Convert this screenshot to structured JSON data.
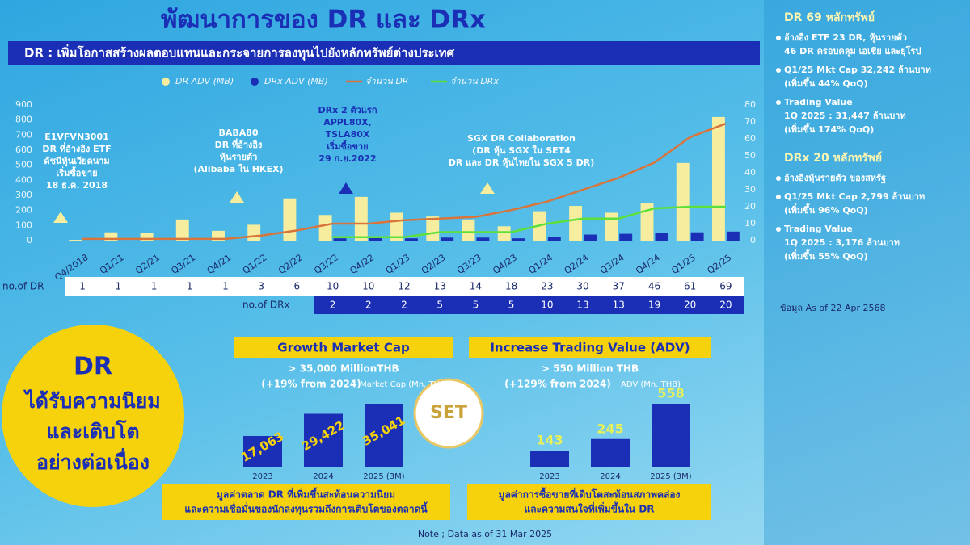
{
  "header": {
    "title": "พัฒนาการของ DR และ DRx",
    "banner": "DR : เพิ่มโอกาสสร้างผลตอบแทนและกระจายการลงทุนไปยังหลักทรัพย์ต่างประเทศ"
  },
  "chart_data": [
    {
      "type": "combo",
      "categories": [
        "Q4/2018",
        "Q1/21",
        "Q2/21",
        "Q3/21",
        "Q4/21",
        "Q1/22",
        "Q2/22",
        "Q3/22",
        "Q4/22",
        "Q1/23",
        "Q2/23",
        "Q3/23",
        "Q4/23",
        "Q1/24",
        "Q2/24",
        "Q3/24",
        "Q4/24",
        "Q1/25",
        "Q2/25"
      ],
      "series": [
        {
          "name": "DR ADV (MB)",
          "kind": "bar",
          "color": "#f6ee9e",
          "values": [
            5,
            55,
            50,
            140,
            65,
            105,
            280,
            170,
            290,
            185,
            160,
            140,
            95,
            195,
            230,
            185,
            250,
            515,
            820
          ]
        },
        {
          "name": "DRx ADV (MB)",
          "kind": "bar",
          "color": "#1a2fb5",
          "values": [
            null,
            null,
            null,
            null,
            null,
            null,
            null,
            15,
            20,
            15,
            20,
            20,
            15,
            25,
            40,
            45,
            50,
            55,
            60
          ]
        },
        {
          "name": "จำนวน DR",
          "kind": "line",
          "axis": "y2",
          "color": "#d9743a",
          "values": [
            1,
            1,
            1,
            1,
            1,
            3,
            6,
            10,
            10,
            12,
            13,
            14,
            18,
            23,
            30,
            37,
            46,
            61,
            69
          ]
        },
        {
          "name": "จำนวน DRx",
          "kind": "line",
          "axis": "y2",
          "color": "#5ee03a",
          "values": [
            null,
            null,
            null,
            null,
            null,
            null,
            null,
            2,
            2,
            2,
            5,
            5,
            5,
            10,
            13,
            13,
            19,
            20,
            20
          ]
        }
      ],
      "ylim": [
        0,
        900
      ],
      "yticks": [
        0,
        100,
        200,
        300,
        400,
        500,
        600,
        700,
        800,
        900
      ],
      "y2lim": [
        0,
        80
      ],
      "y2ticks": [
        0,
        10,
        20,
        30,
        40,
        50,
        60,
        70,
        80
      ],
      "annotations": [
        {
          "color": "#f6ee9e",
          "lines": [
            "E1VFVN3001",
            "DR ที่อ้างอิง ETF",
            "ดัชนีหุ้นเวียดนาม",
            "เริ่มซื้อขาย",
            "18 ธ.ค. 2018"
          ]
        },
        {
          "color": "#f6ee9e",
          "lines": [
            "BABA80",
            "DR ที่อ้างอิง",
            "หุ้นรายตัว",
            "(Alibaba ใน HKEX)"
          ]
        },
        {
          "color": "#1a2fb5",
          "lines": [
            "DRx 2 ตัวแรก",
            "APPL80X,",
            "TSLA80X",
            "เริ่มซื้อขาย",
            "29 ก.ย.2022"
          ]
        },
        {
          "color": "#f6ee9e",
          "lines": [
            "SGX DR Collaboration",
            "(DR หุ้น SGX ใน SET4",
            "DR และ DR หุ้นไทยใน SGX 5 DR)"
          ]
        }
      ]
    },
    {
      "type": "bar",
      "title": "Growth Market Cap",
      "subtitle": "> 35,000 MillionTHB",
      "note": "(+19% from 2024)",
      "unit": "Market Cap (Mn. THB)",
      "categories": [
        "2023",
        "2024",
        "2025 (3M)"
      ],
      "values": [
        17063,
        29422,
        35041
      ],
      "value_labels": [
        "17,063",
        "29,422",
        "35,041"
      ],
      "color": "#1a2fb5",
      "caption": [
        "มูลค่าตลาด DR ที่เพิ่มขึ้นสะท้อนความนิยม",
        "และความเชื่อมั่นของนักลงทุนรวมถึงการเติบโตของตลาดนี้"
      ]
    },
    {
      "type": "bar",
      "title": "Increase Trading Value (ADV)",
      "subtitle": "> 550 Million THB",
      "note": "(+129% from 2024)",
      "unit": "ADV (Mn. THB)",
      "categories": [
        "2023",
        "2024",
        "2025 (3M)"
      ],
      "values": [
        143,
        245,
        558
      ],
      "color": "#1a2fb5",
      "caption": [
        "มูลค่าการซื้อขายที่เติบโตสะท้อนสภาพคล่อง",
        "และความสนใจที่เพิ่มขึ้นใน DR"
      ]
    }
  ],
  "table": {
    "dr_label": "no.of DR",
    "drx_label": "no.of DRx"
  },
  "highlight": {
    "lines": [
      "DR",
      "ได้รับความนิยม",
      "และเติบโต",
      "อย่างต่อเนื่อง"
    ]
  },
  "logo": {
    "text": "SET"
  },
  "note": "Note ; Data as of 31 Mar 2025",
  "sidebar": {
    "dr": {
      "title": "DR 69 หลักทรัพย์",
      "items": [
        [
          "อ้างอิง ETF 23 DR, หุ้นรายตัว",
          "46 DR ครอบคลุม เอเชีย และยุโรป"
        ],
        [
          "Q1/25 Mkt Cap 32,242 ล้านบาท",
          "(เพิ่มขึ้น 44% QoQ)"
        ],
        [
          "Trading Value",
          "1Q 2025 : 31,447 ล้านบาท",
          "(เพิ่มขึ้น 174% QoQ)"
        ]
      ]
    },
    "drx": {
      "title": "DRx 20 หลักทรัพย์",
      "items": [
        [
          "อ้างอิงหุ้นรายตัว ของสหรัฐ"
        ],
        [
          "Q1/25 Mkt Cap 2,799 ล้านบาท",
          "(เพิ่มขึ้น 96% QoQ)"
        ],
        [
          "Trading Value",
          "1Q 2025 : 3,176 ล้านบาท",
          "(เพิ่มขึ้น 55% QoQ)"
        ]
      ]
    },
    "source": "ข้อมูล As of 22 Apr 2568"
  }
}
